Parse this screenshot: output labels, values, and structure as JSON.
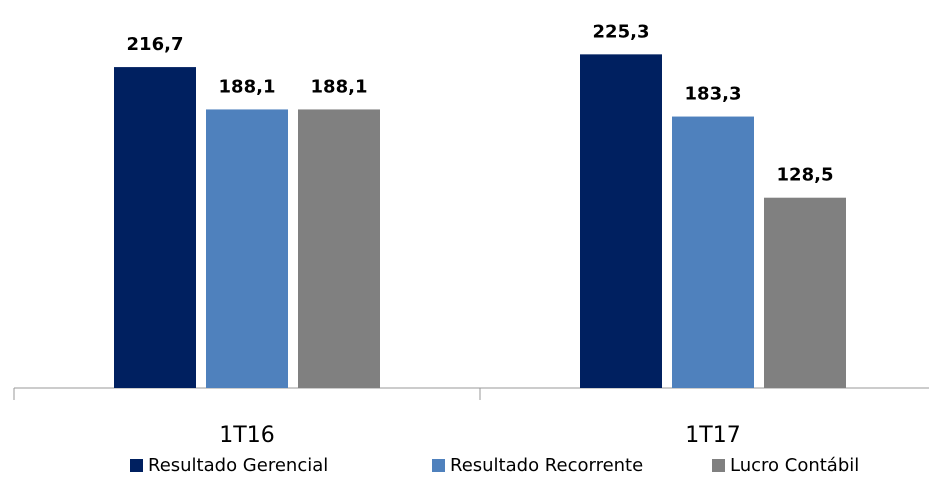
{
  "chart_data": {
    "type": "bar",
    "categories": [
      "1T16",
      "1T17"
    ],
    "series": [
      {
        "name": "Resultado Gerencial",
        "color": "#002060",
        "values": [
          216.7,
          225.3
        ],
        "value_labels": [
          "216,7",
          "225,3"
        ]
      },
      {
        "name": "Resultado Recorrente",
        "color": "#4f81bd",
        "values": [
          188.1,
          183.3
        ],
        "value_labels": [
          "188,1",
          "183,3"
        ]
      },
      {
        "name": "Lucro Contábil",
        "color": "#808080",
        "values": [
          188.1,
          128.5
        ],
        "value_labels": [
          "188,1",
          "128,5"
        ]
      }
    ],
    "ylim": [
      0,
      262
    ]
  }
}
